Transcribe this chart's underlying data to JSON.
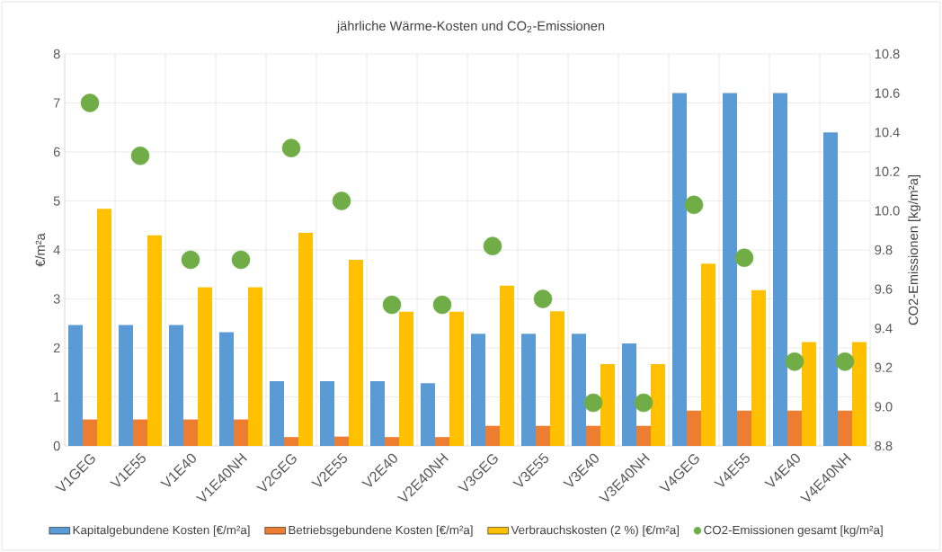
{
  "chart_data": {
    "type": "bar",
    "title": "jährliche Wärme-Kosten und CO$_{2}$-Emissionen",
    "ylabel": "€/m²a",
    "y2label": "CO2-Emissionen [kg/m²a]",
    "categories": [
      "V1GEG",
      "V1E55",
      "V1E40",
      "V1E40NH",
      "V2GEG",
      "V2E55",
      "V2E40",
      "V2E40NH",
      "V3GEG",
      "V3E55",
      "V3E40",
      "V3E40NH",
      "V4GEG",
      "V4E55",
      "V4E40",
      "V4E40NH"
    ],
    "series": [
      {
        "name": "Kapitalgebundene Kosten [€/m²a]",
        "color": "#5b9bd5",
        "values": [
          2.47,
          2.47,
          2.47,
          2.32,
          1.32,
          1.32,
          1.32,
          1.28,
          2.29,
          2.29,
          2.29,
          2.09,
          7.2,
          7.2,
          7.2,
          6.4
        ]
      },
      {
        "name": "Betriebsgebundene Kosten [€/m²a]",
        "color": "#ed7d31",
        "values": [
          0.54,
          0.54,
          0.54,
          0.54,
          0.18,
          0.19,
          0.18,
          0.18,
          0.41,
          0.41,
          0.41,
          0.41,
          0.72,
          0.72,
          0.72,
          0.72
        ]
      },
      {
        "name": "Verbrauchskosten (2 %) [€/m²a]",
        "color": "#ffc000",
        "values": [
          4.84,
          4.3,
          3.24,
          3.24,
          4.35,
          3.8,
          2.74,
          2.74,
          3.27,
          2.75,
          1.67,
          1.67,
          3.72,
          3.18,
          2.12,
          2.12
        ]
      },
      {
        "name": "CO2-Emissionen gesamt [kg/m²a]",
        "type": "scatter",
        "axis": "y2",
        "marker": "circle",
        "color": "#70ad47",
        "values": [
          10.55,
          10.28,
          9.75,
          9.75,
          10.32,
          10.05,
          9.52,
          9.52,
          9.82,
          9.55,
          9.02,
          9.02,
          10.03,
          9.76,
          9.23,
          9.23
        ]
      }
    ],
    "ylim": [
      0,
      8
    ],
    "yticks": [
      0,
      1,
      2,
      3,
      4,
      5,
      6,
      7,
      8
    ],
    "y2lim": [
      8.8,
      10.8
    ],
    "y2ticks": [
      {
        "value": 8.8,
        "label": "8.8"
      },
      {
        "value": 9,
        "label": "9.0"
      },
      {
        "value": 9.2,
        "label": "9.2"
      },
      {
        "value": 9.4,
        "label": "9.4"
      },
      {
        "value": 9.6,
        "label": "9.6"
      },
      {
        "value": 9.8,
        "label": "9.8"
      },
      {
        "value": 10,
        "label": "10.0"
      },
      {
        "value": 10.2,
        "label": "10.2"
      },
      {
        "value": 10.4,
        "label": "10.4"
      },
      {
        "value": 10.6,
        "label": "10.6"
      },
      {
        "value": 10.8,
        "label": "10.8"
      }
    ],
    "grid": true,
    "legend": "bottom"
  }
}
